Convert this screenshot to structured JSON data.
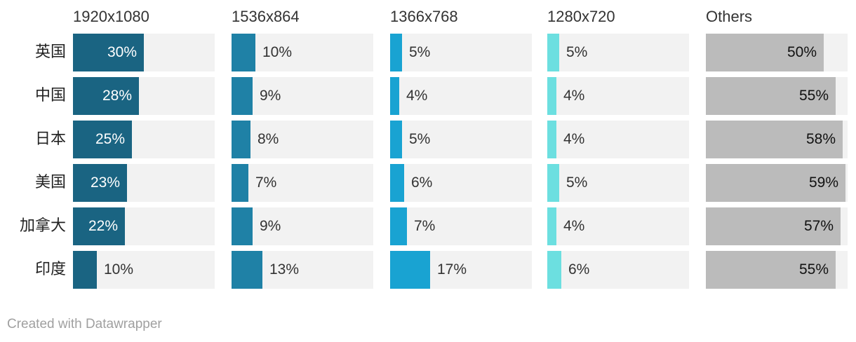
{
  "chart_data": {
    "type": "bar",
    "categories": [
      "英国",
      "中国",
      "日本",
      "美国",
      "加拿大",
      "印度"
    ],
    "series": [
      {
        "name": "1920x1080",
        "values": [
          30,
          28,
          25,
          23,
          22,
          10
        ],
        "color": "#1a6482"
      },
      {
        "name": "1536x864",
        "values": [
          10,
          9,
          8,
          7,
          9,
          13
        ],
        "color": "#1f81a6"
      },
      {
        "name": "1366x768",
        "values": [
          5,
          4,
          5,
          6,
          7,
          17
        ],
        "color": "#19a3d2"
      },
      {
        "name": "1280x720",
        "values": [
          5,
          4,
          4,
          5,
          4,
          6
        ],
        "color": "#6cdfe0"
      },
      {
        "name": "Others",
        "values": [
          50,
          55,
          58,
          59,
          57,
          55
        ],
        "color": "#bbbbbb"
      }
    ],
    "value_suffix": "%",
    "xlim": [
      0,
      60
    ],
    "background_color": "#f2f2f2"
  },
  "footer": "Created with Datawrapper"
}
